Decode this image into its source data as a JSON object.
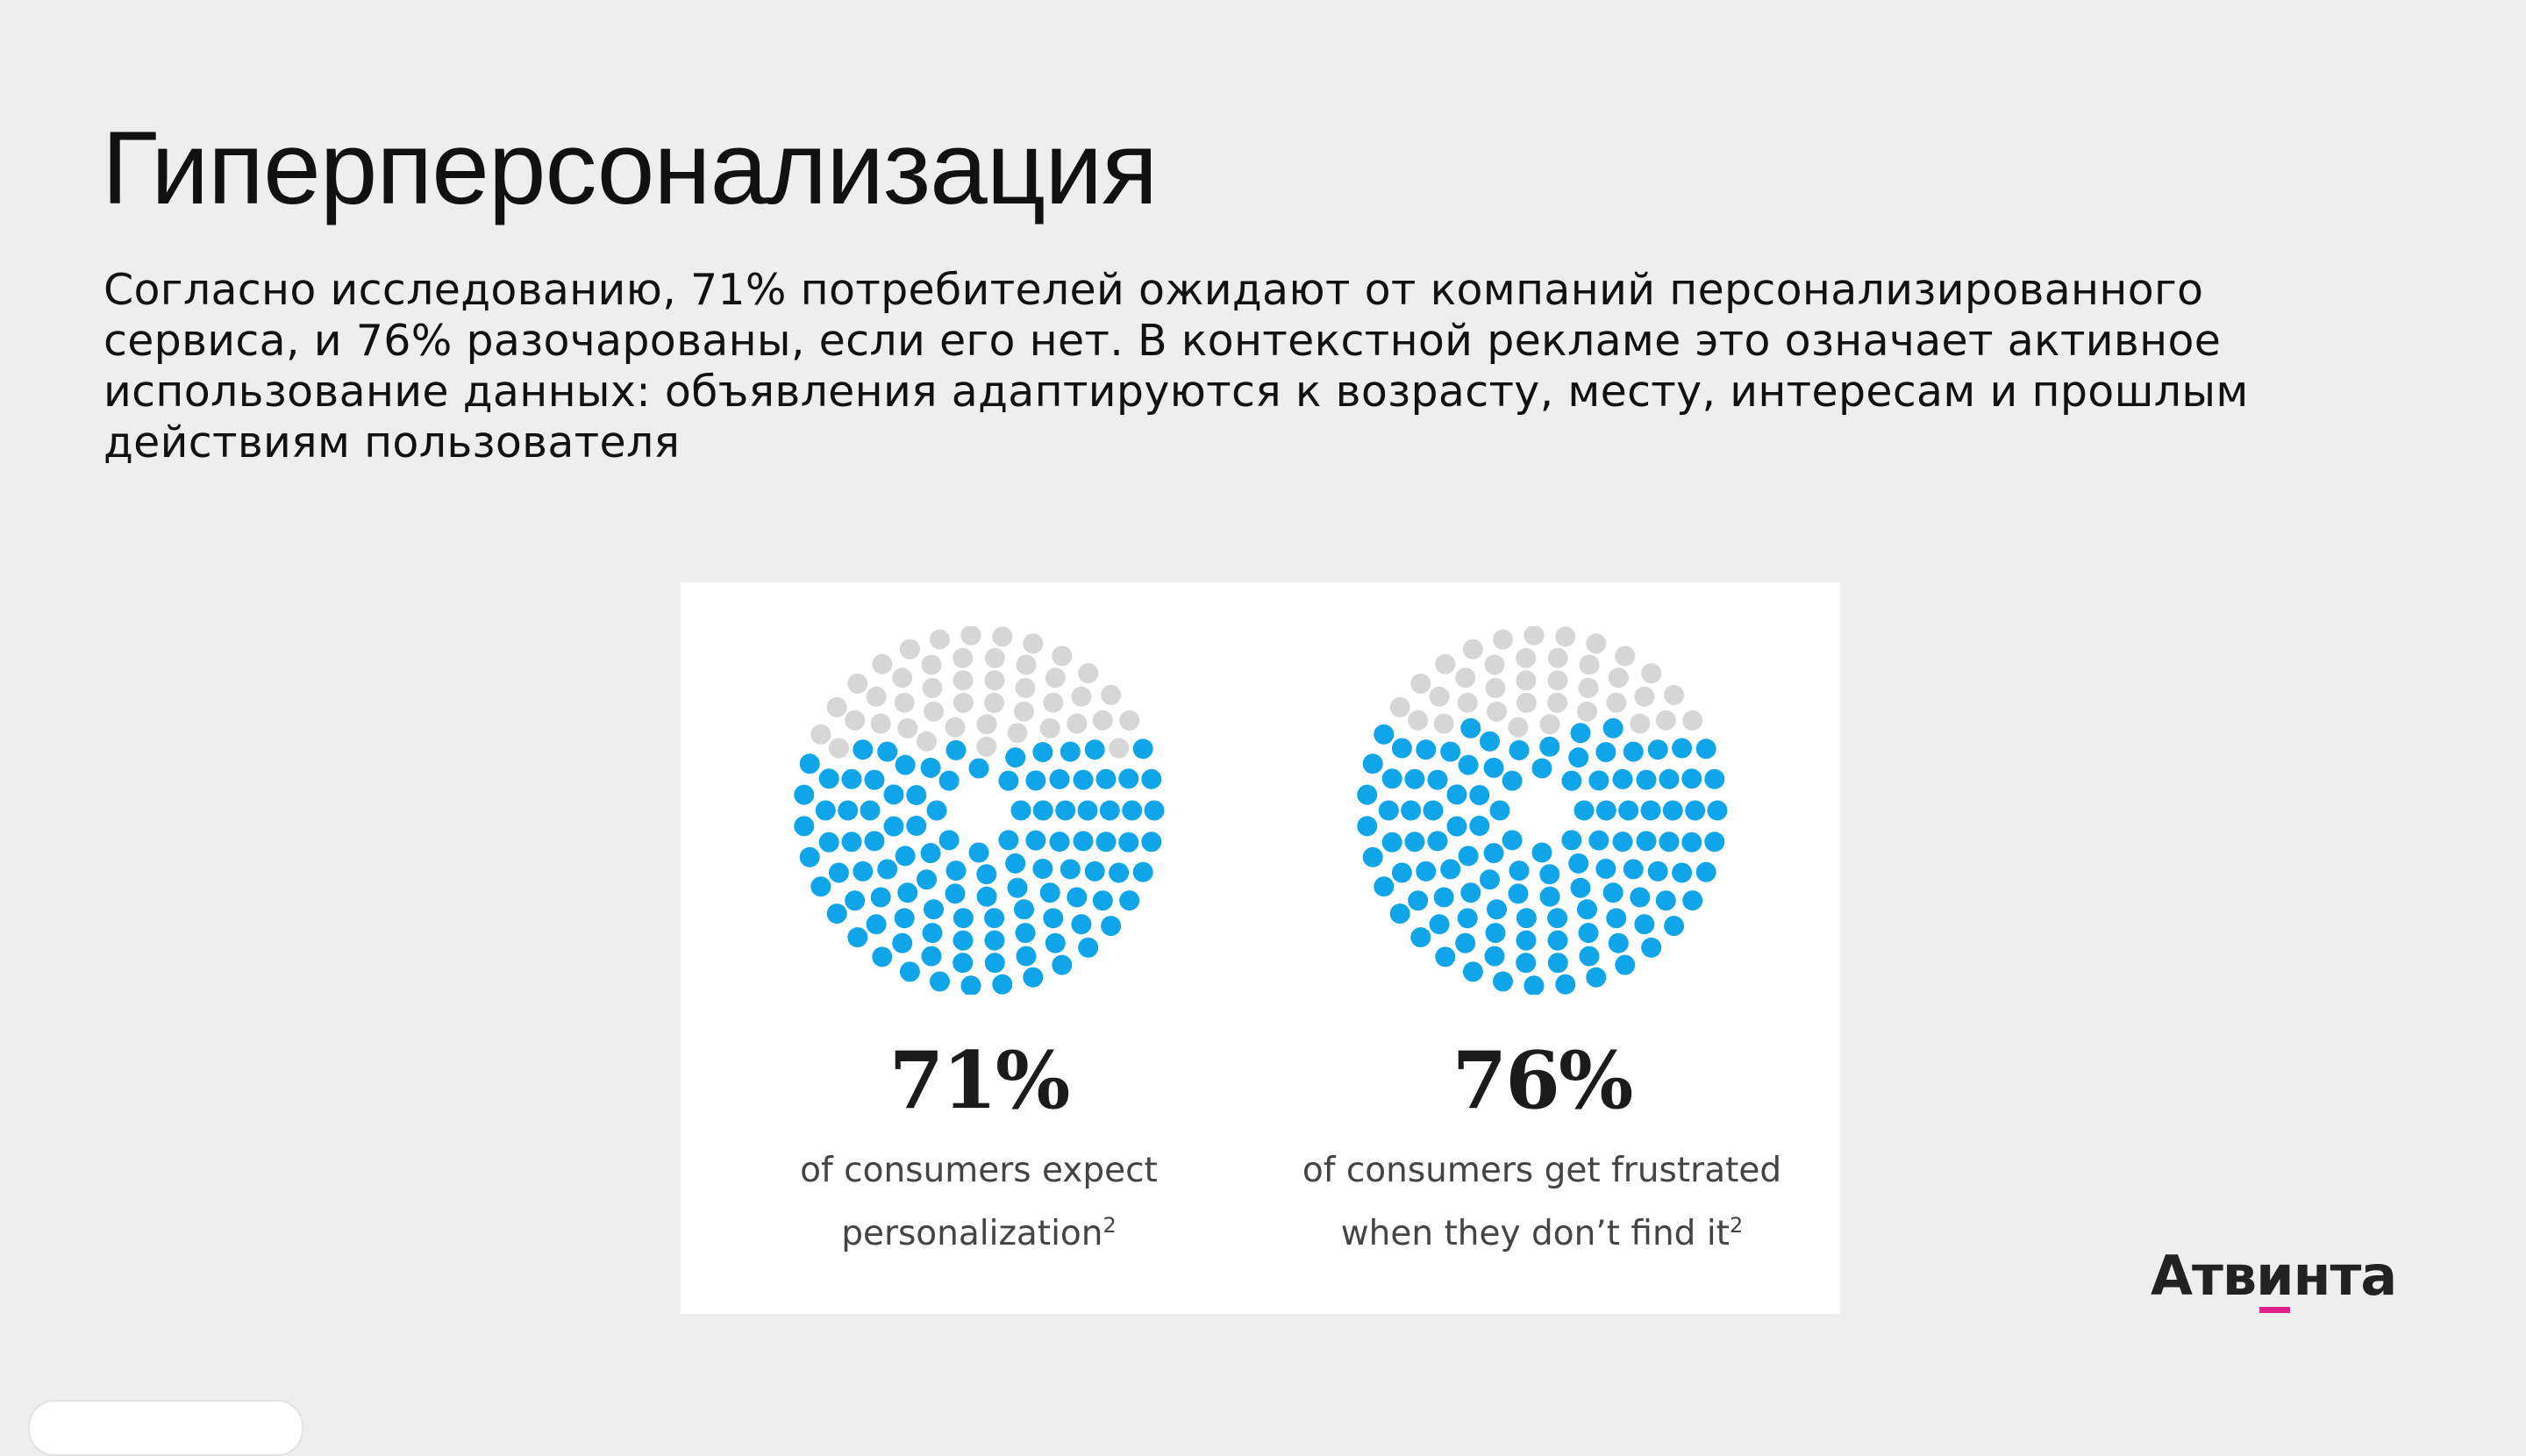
{
  "slide": {
    "title": "Гиперперсонализация",
    "text": "Согласно исследованию, 71% потребителей ожидают от компаний персонализированного сервиса, и 76% разочарованы, если его нет. В контекстной рекламе это означает активное использование данных: объявления адаптируются к возрасту, месту, интересам и прошлым действиям пользователя"
  },
  "stats": [
    {
      "value": "71%",
      "caption_line1": "of consumers expect",
      "caption_line2": "personalization",
      "footnote": "2",
      "percent": 71
    },
    {
      "value": "76%",
      "caption_line1": "of consumers get frustrated",
      "caption_line2": "when they don’t find it",
      "footnote": "2",
      "percent": 76
    }
  ],
  "colors": {
    "filled_dot": "#10a5e8",
    "empty_dot": "#d6d6d6",
    "logo_accent": "#e0218a"
  },
  "logo": {
    "pre": "Атв",
    "accent": "и",
    "post": "нта"
  }
}
